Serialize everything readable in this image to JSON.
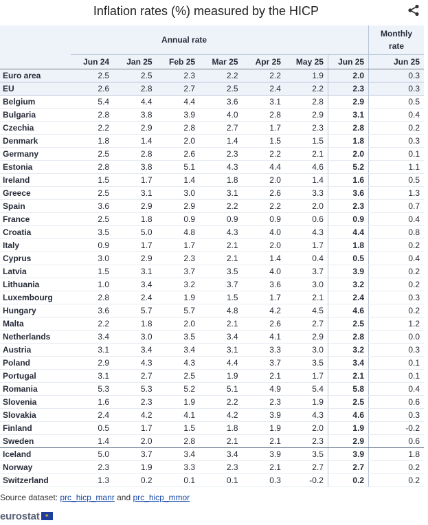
{
  "title": "Inflation rates (%) measured by the HICP",
  "share_icon": "share-icon",
  "header": {
    "group_annual": "Annual rate",
    "group_monthly_line1": "Monthly",
    "group_monthly_line2": "rate",
    "columns": [
      "Jun 24",
      "Jan 25",
      "Feb 25",
      "Mar 25",
      "Apr 25",
      "May 25",
      "Jun 25",
      "Jun 25"
    ]
  },
  "rows": [
    {
      "country": "Euro area",
      "v": [
        "2.5",
        "2.5",
        "2.3",
        "2.2",
        "2.2",
        "1.9",
        "2.0",
        "0.3"
      ]
    },
    {
      "country": "EU",
      "v": [
        "2.6",
        "2.8",
        "2.7",
        "2.5",
        "2.4",
        "2.2",
        "2.3",
        "0.3"
      ]
    },
    {
      "country": "Belgium",
      "v": [
        "5.4",
        "4.4",
        "4.4",
        "3.6",
        "3.1",
        "2.8",
        "2.9",
        "0.5"
      ]
    },
    {
      "country": "Bulgaria",
      "v": [
        "2.8",
        "3.8",
        "3.9",
        "4.0",
        "2.8",
        "2.9",
        "3.1",
        "0.4"
      ]
    },
    {
      "country": "Czechia",
      "v": [
        "2.2",
        "2.9",
        "2.8",
        "2.7",
        "1.7",
        "2.3",
        "2.8",
        "0.2"
      ]
    },
    {
      "country": "Denmark",
      "v": [
        "1.8",
        "1.4",
        "2.0",
        "1.4",
        "1.5",
        "1.5",
        "1.8",
        "0.3"
      ]
    },
    {
      "country": "Germany",
      "v": [
        "2.5",
        "2.8",
        "2.6",
        "2.3",
        "2.2",
        "2.1",
        "2.0",
        "0.1"
      ]
    },
    {
      "country": "Estonia",
      "v": [
        "2.8",
        "3.8",
        "5.1",
        "4.3",
        "4.4",
        "4.6",
        "5.2",
        "1.1"
      ]
    },
    {
      "country": "Ireland",
      "v": [
        "1.5",
        "1.7",
        "1.4",
        "1.8",
        "2.0",
        "1.4",
        "1.6",
        "0.5"
      ]
    },
    {
      "country": "Greece",
      "v": [
        "2.5",
        "3.1",
        "3.0",
        "3.1",
        "2.6",
        "3.3",
        "3.6",
        "1.3"
      ]
    },
    {
      "country": "Spain",
      "v": [
        "3.6",
        "2.9",
        "2.9",
        "2.2",
        "2.2",
        "2.0",
        "2.3",
        "0.7"
      ]
    },
    {
      "country": "France",
      "v": [
        "2.5",
        "1.8",
        "0.9",
        "0.9",
        "0.9",
        "0.6",
        "0.9",
        "0.4"
      ]
    },
    {
      "country": "Croatia",
      "v": [
        "3.5",
        "5.0",
        "4.8",
        "4.3",
        "4.0",
        "4.3",
        "4.4",
        "0.8"
      ]
    },
    {
      "country": "Italy",
      "v": [
        "0.9",
        "1.7",
        "1.7",
        "2.1",
        "2.0",
        "1.7",
        "1.8",
        "0.2"
      ]
    },
    {
      "country": "Cyprus",
      "v": [
        "3.0",
        "2.9",
        "2.3",
        "2.1",
        "1.4",
        "0.4",
        "0.5",
        "0.4"
      ]
    },
    {
      "country": "Latvia",
      "v": [
        "1.5",
        "3.1",
        "3.7",
        "3.5",
        "4.0",
        "3.7",
        "3.9",
        "0.2"
      ]
    },
    {
      "country": "Lithuania",
      "v": [
        "1.0",
        "3.4",
        "3.2",
        "3.7",
        "3.6",
        "3.0",
        "3.2",
        "0.2"
      ]
    },
    {
      "country": "Luxembourg",
      "v": [
        "2.8",
        "2.4",
        "1.9",
        "1.5",
        "1.7",
        "2.1",
        "2.4",
        "0.3"
      ]
    },
    {
      "country": "Hungary",
      "v": [
        "3.6",
        "5.7",
        "5.7",
        "4.8",
        "4.2",
        "4.5",
        "4.6",
        "0.2"
      ]
    },
    {
      "country": "Malta",
      "v": [
        "2.2",
        "1.8",
        "2.0",
        "2.1",
        "2.6",
        "2.7",
        "2.5",
        "1.2"
      ]
    },
    {
      "country": "Netherlands",
      "v": [
        "3.4",
        "3.0",
        "3.5",
        "3.4",
        "4.1",
        "2.9",
        "2.8",
        "0.0"
      ]
    },
    {
      "country": "Austria",
      "v": [
        "3.1",
        "3.4",
        "3.4",
        "3.1",
        "3.3",
        "3.0",
        "3.2",
        "0.3"
      ]
    },
    {
      "country": "Poland",
      "v": [
        "2.9",
        "4.3",
        "4.3",
        "4.4",
        "3.7",
        "3.5",
        "3.4",
        "0.1"
      ]
    },
    {
      "country": "Portugal",
      "v": [
        "3.1",
        "2.7",
        "2.5",
        "1.9",
        "2.1",
        "1.7",
        "2.1",
        "0.1"
      ]
    },
    {
      "country": "Romania",
      "v": [
        "5.3",
        "5.3",
        "5.2",
        "5.1",
        "4.9",
        "5.4",
        "5.8",
        "0.4"
      ]
    },
    {
      "country": "Slovenia",
      "v": [
        "1.6",
        "2.3",
        "1.9",
        "2.2",
        "2.3",
        "1.9",
        "2.5",
        "0.6"
      ]
    },
    {
      "country": "Slovakia",
      "v": [
        "2.4",
        "4.2",
        "4.1",
        "4.2",
        "3.9",
        "4.3",
        "4.6",
        "0.3"
      ]
    },
    {
      "country": "Finland",
      "v": [
        "0.5",
        "1.7",
        "1.5",
        "1.8",
        "1.9",
        "2.0",
        "1.9",
        "-0.2"
      ]
    },
    {
      "country": "Sweden",
      "v": [
        "1.4",
        "2.0",
        "2.8",
        "2.1",
        "2.1",
        "2.3",
        "2.9",
        "0.6"
      ]
    },
    {
      "country": "Iceland",
      "v": [
        "5.0",
        "3.7",
        "3.4",
        "3.4",
        "3.9",
        "3.5",
        "3.9",
        "1.8"
      ]
    },
    {
      "country": "Norway",
      "v": [
        "2.3",
        "1.9",
        "3.3",
        "2.3",
        "2.1",
        "2.7",
        "2.7",
        "0.2"
      ]
    },
    {
      "country": "Switzerland",
      "v": [
        "1.3",
        "0.2",
        "0.1",
        "0.1",
        "0.3",
        "-0.2",
        "0.2",
        "0.2"
      ]
    }
  ],
  "source": {
    "prefix": "Source dataset: ",
    "link1": "prc_hicp_manr",
    "middle": " and ",
    "link2": "prc_hicp_mmor"
  },
  "logo": {
    "text": "eurostat",
    "flag_icon": "eu-flag-icon"
  }
}
